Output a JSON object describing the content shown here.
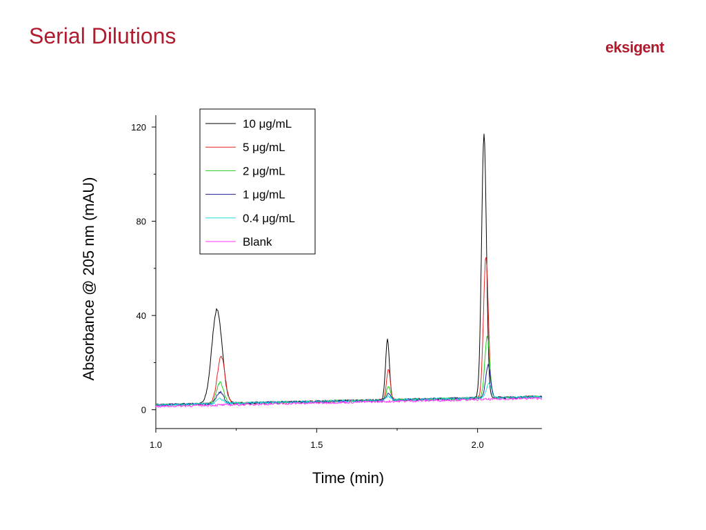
{
  "slide": {
    "title": "Serial Dilutions",
    "logo_text": "eksigent",
    "accent_color": "#b01c2e"
  },
  "chart_data": {
    "type": "line",
    "xlabel": "Time (min)",
    "ylabel": "Absorbance @ 205 nm (mAU)",
    "xlim": [
      1.0,
      2.2
    ],
    "ylim": [
      -8,
      125
    ],
    "x_ticks": [
      {
        "value": 1.0,
        "label": "1.0"
      },
      {
        "value": 1.5,
        "label": "1.5"
      },
      {
        "value": 2.0,
        "label": "2.0"
      }
    ],
    "y_ticks": [
      {
        "value": 0,
        "label": "0"
      },
      {
        "value": 40,
        "label": "40"
      },
      {
        "value": 80,
        "label": "80"
      },
      {
        "value": 120,
        "label": "120"
      }
    ],
    "grid": false,
    "legend_position": "top-left",
    "baseline": {
      "start": 2.0,
      "end": 5.5
    },
    "series": [
      {
        "name": "10 μg/mL",
        "color": "#000000",
        "peaks": [
          {
            "time": 1.19,
            "height": 40,
            "width": 0.016
          },
          {
            "time": 1.72,
            "height": 25.5,
            "width": 0.006
          },
          {
            "time": 2.02,
            "height": 112,
            "width": 0.0075
          }
        ]
      },
      {
        "name": "5   μg/mL",
        "color": "#e8201c",
        "peaks": [
          {
            "time": 1.203,
            "height": 20,
            "width": 0.012
          },
          {
            "time": 1.723,
            "height": 13,
            "width": 0.006
          },
          {
            "time": 2.026,
            "height": 60,
            "width": 0.0075
          }
        ]
      },
      {
        "name": "2   μg/mL",
        "color": "#22cc22",
        "peaks": [
          {
            "time": 1.2,
            "height": 9,
            "width": 0.011
          },
          {
            "time": 1.723,
            "height": 6,
            "width": 0.006
          },
          {
            "time": 2.03,
            "height": 26,
            "width": 0.0075
          }
        ]
      },
      {
        "name": "1   μg/mL",
        "color": "#1a1a9a",
        "peaks": [
          {
            "time": 1.2,
            "height": 4.8,
            "width": 0.011
          },
          {
            "time": 1.723,
            "height": 3.2,
            "width": 0.006
          },
          {
            "time": 2.033,
            "height": 14,
            "width": 0.0075
          }
        ]
      },
      {
        "name": "0.4 μg/mL",
        "color": "#22dddd",
        "peaks": [
          {
            "time": 1.2,
            "height": 2,
            "width": 0.011
          },
          {
            "time": 1.723,
            "height": 1.6,
            "width": 0.006
          },
          {
            "time": 2.035,
            "height": 6.5,
            "width": 0.0075
          }
        ]
      },
      {
        "name": "Blank",
        "color": "#ff33ff",
        "peaks": []
      }
    ]
  }
}
